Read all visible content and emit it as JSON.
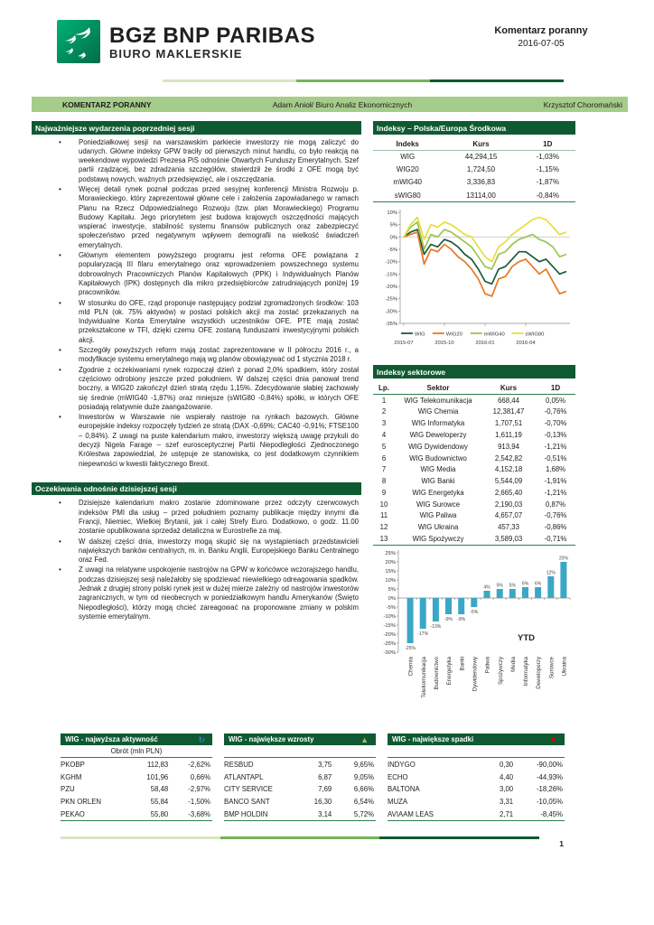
{
  "header": {
    "brand_line1": "BGƵ BNP PARIBAS",
    "brand_line2": "BIURO MAKLERSKIE",
    "doc_type": "Komentarz poranny",
    "date": "2016-07-05"
  },
  "titlebar": {
    "left": "KOMENTARZ PORANNY",
    "center": "Adam Anioł/ Biuro Analiz Ekonomicznych",
    "right": "Krzysztof Choromański"
  },
  "sections": {
    "events": {
      "title": "Najważniejsze wydarzenia poprzedniej sesji",
      "bullets": [
        "Poniedziałkowej sesji na warszawskim parkiecie inwestorzy nie mogą zaliczyć do udanych. Główne indeksy GPW traciły od pierwszych minut handlu, co było reakcją na weekendowe wypowiedzi Prezesa PiS odnośnie Otwartych Funduszy Emerytalnych. Szef partii rządzącej, bez zdradzania szczegółów, stwierdził że środki z OFE mogą być podstawą nowych, ważnych przedsięwzięć, ale i oszczędzania.",
        "Więcej detali rynek poznał podczas przed sesyjnej konferencji Ministra Rozwoju p. Morawieckiego, który zaprezentował główne cele i założenia zapowiadanego w ramach Planu na Rzecz Odpowiedzialnego Rozwoju (tzw. plan Morawieckiego) Programu Budowy Kapitału. Jego priorytetem jest budowa krajowych oszczędności mających wspierać inwestycje, stabilność systemu finansów publicznych oraz zabezpieczyć społeczeństwo przed negatywnym wpływem demografii na wielkość świadczeń emerytalnych.",
        "Głównym elementem powyższego programu jest reforma OFE powiązana z popularyzacją III filaru emerytalnego oraz wprowadzeniem powszechnego systemu dobrowolnych Pracowniczych Planów Kapitałowych (PPK) i Indywidualnych Planów Kapitałowych (IPK) dostępnych dla mikro przedsiębiorców zatrudniających poniżej 19 pracowników.",
        "W stosunku do OFE, rząd proponuje następujący podział zgromadzonych środków: 103 mld PLN (ok. 75% aktywów) w postaci polskich akcji ma zostać przekazanych na Indywidualne Konta Emerytalne wszystkich uczestników OFE. PTE mają zostać przekształcone w TFI, dzięki czemu OFE zostaną funduszami inwestycyjnymi polskich akcji.",
        "Szczegóły powyższych reform mają zostać zaprezentowane w II półroczu 2016 r., a modyfikacje systemu emerytalnego mają wg planów obowiązywać od 1 stycznia 2018 r.",
        "Zgodnie z oczekiwaniami rynek rozpoczął dzień z ponad 2,0% spadkiem, który został częściowo odrobiony jeszcze przed południem. W dalszej części dnia panował trend boczny, a WIG20 zakończył dzień stratą rzędu 1,15%. Zdecydowanie słabiej zachowały się średnie (mWIG40 -1,87%) oraz mniejsze (sWIG80 -0,84%) spółki, w których OFE posiadają relatywnie duże zaangażowanie.",
        "Inwestorów w Warszawie nie wspierały nastroje na rynkach bazowych. Główne europejskie indeksy rozpoczęły tydzień ze stratą (DAX -0,69%; CAC40 -0,91%; FTSE100 – 0,84%). Z uwagi na puste kalendarium makro, inwestorzy większą uwagę przykuli do decyzji Nigela Farage – szef eurosceptycznej Partii Niepodległości Zjednoczonego Królestwa zapowiedział, że ustępuje ze stanowiska, co jest dodatkowym czynnikiem niepewności w kwestii faktycznego Brexit."
      ]
    },
    "expectations": {
      "title": "Oczekiwania odnośnie dzisiejszej sesji",
      "bullets": [
        "Dzisiejsze kalendarium makro zostanie zdominowane przez odczyty czerwcowych indeksów PMI dla usług – przed południem poznamy publikacje między innymi dla Francji, Niemiec, Wielkiej Brytanii, jak i całej Strefy Euro. Dodatkowo, o godz. 11.00 zostanie opublikowana sprzedaż detaliczna w Eurostrefie za maj.",
        "W dalszej części dnia, inwestorzy mogą skupić się na wystąpieniach przedstawicieli największych banków centralnych, m. in. Banku Anglii, Europejskiego Banku Centralnego oraz Fed.",
        "Z uwagi na relatywne uspokojenie nastrojów na GPW w końcówce wczorajszego handlu, podczas dzisiejszej sesji należałoby się spodziewać niewielkiego odreagowania spadków. Jednak z drugiej strony polski rynek jest w dużej mierze zależny od nastrojów inwestorów zagranicznych, w tym od nieobecnych w poniedziałkowym handlu Amerykanów (Święto Niepodległości), którzy mogą chcieć zareagować na proponowane zmiany w polskim systemie emerytalnym."
      ]
    }
  },
  "indices_table": {
    "title": "Indeksy – Polska/Europa Środkowa",
    "columns": [
      "Indeks",
      "Kurs",
      "1D"
    ],
    "rows": [
      [
        "WIG",
        "44,294,15",
        "-1,03%"
      ],
      [
        "WIG20",
        "1,724,50",
        "-1,15%"
      ],
      [
        "mWIG40",
        "3,336,83",
        "-1,87%"
      ],
      [
        "sWIG80",
        "13114,00",
        "-0,84%"
      ]
    ]
  },
  "sector_table": {
    "title": "Indeksy sektorowe",
    "columns": [
      "Lp.",
      "Sektor",
      "Kurs",
      "1D"
    ],
    "rows": [
      [
        "1",
        "WIG Telekomunikacja",
        "668,44",
        "0,05%"
      ],
      [
        "2",
        "WIG Chemia",
        "12,381,47",
        "-0,76%"
      ],
      [
        "3",
        "WIG Informatyka",
        "1,707,51",
        "-0,70%"
      ],
      [
        "4",
        "WIG Deweloperzy",
        "1,611,19",
        "-0,13%"
      ],
      [
        "5",
        "WIG Dywidendowy",
        "913,94",
        "-1,21%"
      ],
      [
        "6",
        "WIG Budownictwo",
        "2,542,82",
        "-0,51%"
      ],
      [
        "7",
        "WIG Media",
        "4,152,18",
        "1,68%"
      ],
      [
        "8",
        "WIG Banki",
        "5,544,09",
        "-1,91%"
      ],
      [
        "9",
        "WIG Energetyka",
        "2,665,40",
        "-1,21%"
      ],
      [
        "10",
        "WIG Surowce",
        "2,190,03",
        "0,87%"
      ],
      [
        "11",
        "WIG Paliwa",
        "4,657,07",
        "-0,76%"
      ],
      [
        "12",
        "WIG Ukraina",
        "457,33",
        "-0,86%"
      ],
      [
        "13",
        "WIG Spożywczy",
        "3,589,03",
        "-0,71%"
      ]
    ]
  },
  "movers": {
    "activity": {
      "title": "WIG - najwyższa aktywność",
      "icon_name": "refresh-icon",
      "icon_glyph": "↻",
      "icon_color": "#1e7fd6",
      "subheader": "Obrót (mln PLN)",
      "rows": [
        [
          "PKOBP",
          "112,83",
          "-2,62%"
        ],
        [
          "KGHM",
          "101,96",
          "0,66%"
        ],
        [
          "PZU",
          "58,48",
          "-2,97%"
        ],
        [
          "PKN ORLEN",
          "55,84",
          "-1,50%"
        ],
        [
          "PEKAO",
          "55,80",
          "-3,68%"
        ]
      ]
    },
    "gainers": {
      "title": "WIG - największe wzrosty",
      "icon_name": "triangle-up-icon",
      "icon_glyph": "▲",
      "icon_color": "#a9bd6b",
      "subheader": "",
      "rows": [
        [
          "RESBUD",
          "3,75",
          "9,65%"
        ],
        [
          "ATLANTAPL",
          "6,87",
          "9,05%"
        ],
        [
          "CITY SERVICE",
          "7,69",
          "6,66%"
        ],
        [
          "BANCO SANT",
          "16,30",
          "6,54%"
        ],
        [
          "BMP HOLDIN",
          "3,14",
          "5,72%"
        ]
      ]
    },
    "losers": {
      "title": "WIG - największe spadki",
      "icon_name": "triangle-down-icon",
      "icon_glyph": "▼",
      "icon_color": "#e00000",
      "subheader": "",
      "rows": [
        [
          "INDYGO",
          "0,30",
          "-90,00%"
        ],
        [
          "ECHO",
          "4,40",
          "-44,93%"
        ],
        [
          "BALTONA",
          "3,00",
          "-18,26%"
        ],
        [
          "MUZA",
          "3,31",
          "-10,05%"
        ],
        [
          "AVIAAM LEAS",
          "2,71",
          "-8,45%"
        ]
      ]
    }
  },
  "footer": {
    "page_number": "1"
  },
  "brand_colors": {
    "dark_green": "#0f5a32",
    "titlebar_green": "#a6cc8a",
    "table_rule_green": "#2f7d4e"
  },
  "chart_data": [
    {
      "type": "line",
      "title": "Indeksy GPW – stopa zwrotu (12M)",
      "ylim": [
        -35,
        10
      ],
      "y_tick_step": 5,
      "y_unit": "%",
      "grid": "zero-line-only",
      "legend_position": "bottom",
      "x_ticks": [
        {
          "label": "2015-07",
          "i": 0
        },
        {
          "label": "2015-10",
          "i": 6
        },
        {
          "label": "2016-01",
          "i": 12
        },
        {
          "label": "2016-04",
          "i": 18
        }
      ],
      "series": [
        {
          "name": "WIG",
          "color": "#1a5c38",
          "values": [
            0,
            2,
            3,
            -7,
            -3,
            -4,
            -1,
            -2,
            -4,
            -7,
            -9,
            -13,
            -18,
            -19,
            -13,
            -12,
            -9,
            -6,
            -6,
            -8,
            -10,
            -9,
            -12,
            -15,
            -14
          ]
        },
        {
          "name": "WIG20",
          "color": "#e87722",
          "values": [
            0,
            1,
            2,
            -11,
            -5,
            -6,
            -3,
            -5,
            -8,
            -10,
            -13,
            -17,
            -23,
            -24,
            -17,
            -16,
            -12,
            -10,
            -9,
            -12,
            -15,
            -13,
            -18,
            -23,
            -22
          ]
        },
        {
          "name": "mWIG40",
          "color": "#9dc353",
          "values": [
            0,
            4,
            6,
            -5,
            1,
            0,
            3,
            2,
            0,
            -2,
            -4,
            -8,
            -12,
            -13,
            -7,
            -6,
            -3,
            -1,
            0,
            1,
            -1,
            -2,
            -4,
            -8,
            -7
          ]
        },
        {
          "name": "sWIG80",
          "color": "#e6df3a",
          "values": [
            0,
            5,
            8,
            -1,
            5,
            4,
            6,
            5,
            3,
            1,
            0,
            -4,
            -8,
            -10,
            -4,
            -2,
            1,
            3,
            5,
            7,
            8,
            7,
            4,
            1,
            2
          ]
        }
      ]
    },
    {
      "type": "bar",
      "annotation": "YTD",
      "categories": [
        "Chemia",
        "Telekomunikacja",
        "Budownictwo",
        "Energetyka",
        "Banki",
        "Dywidendowy",
        "Paliwa",
        "Spożywczy",
        "Media",
        "Informatyka",
        "Deweloperzy",
        "Surowce",
        "Ukraina"
      ],
      "values": [
        -25,
        -17,
        -13,
        -9,
        -9,
        -5,
        4,
        5,
        5,
        6,
        6,
        12,
        20
      ],
      "labels": [
        "-25%",
        "-17%",
        "-13%",
        "-9%",
        "-9%",
        "-5%",
        "4%",
        "5%",
        "5%",
        "6%",
        "6%",
        "12%",
        "20%"
      ],
      "ylim": [
        -30,
        25
      ],
      "y_tick_step": 5,
      "bar_color": "#3aa7c6"
    }
  ]
}
